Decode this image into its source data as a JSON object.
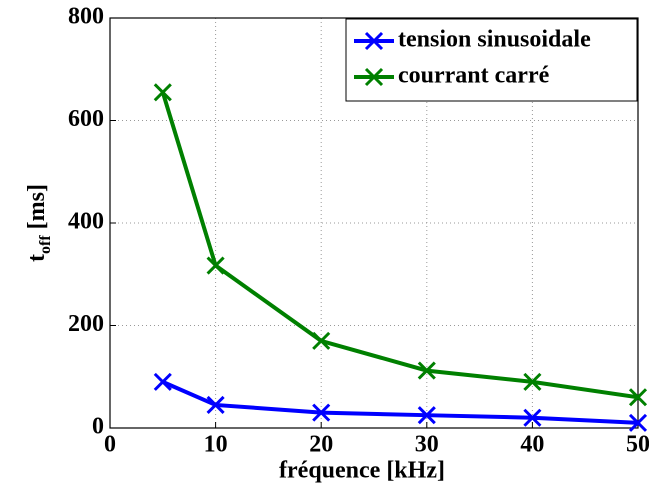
{
  "chart_data": {
    "type": "line",
    "x_label": "fréquence [kHz]",
    "y_label": [
      "t",
      "off",
      "[ms]"
    ],
    "x": [
      5,
      10,
      20,
      30,
      40,
      50
    ],
    "series": [
      {
        "name": "tension sinusoidale",
        "color": "#0000ff",
        "values": [
          90,
          45,
          30,
          25,
          20,
          10
        ]
      },
      {
        "name": "courrant carré",
        "color": "#008000",
        "values": [
          655,
          317,
          170,
          112,
          90,
          60
        ]
      }
    ],
    "xlim": [
      0,
      50
    ],
    "xticks": [
      0,
      10,
      20,
      30,
      40,
      50
    ],
    "ylim": [
      0,
      800
    ],
    "yticks": [
      0,
      200,
      400,
      600,
      800
    ],
    "grid": true,
    "legend": "upper right"
  }
}
